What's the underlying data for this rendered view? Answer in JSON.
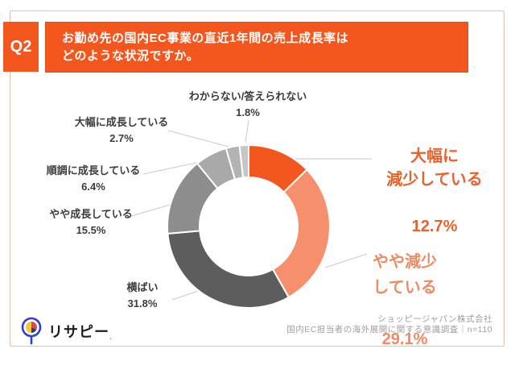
{
  "header": {
    "badge": "Q2",
    "question": "お勤め先の国内EC事業の直近1年間の売上成長率は\nどのような状況ですか。"
  },
  "chart_data": {
    "type": "pie",
    "variant": "donut",
    "title": "お勤め先の国内EC事業の直近1年間の売上成長率はどのような状況ですか。",
    "unit": "%",
    "start_angle_deg": 0,
    "direction": "clockwise",
    "legend_position": "none",
    "segments": [
      {
        "label": "大幅に減少している",
        "value": 12.7,
        "display": "12.7%",
        "color": "#f4571d"
      },
      {
        "label": "やや減少している",
        "value": 29.1,
        "display": "29.1%",
        "color": "#f6906c"
      },
      {
        "label": "横ばい",
        "value": 31.8,
        "display": "31.8%",
        "color": "#5d5d5d"
      },
      {
        "label": "やや成長している",
        "value": 15.5,
        "display": "15.5%",
        "color": "#8d8d8d"
      },
      {
        "label": "順調に成長している",
        "value": 6.4,
        "display": "6.4%",
        "color": "#a9a9a9"
      },
      {
        "label": "大幅に成長している",
        "value": 2.7,
        "display": "2.7%",
        "color": "#b3b3b3"
      },
      {
        "label": "わからない/答えられない",
        "value": 1.8,
        "display": "1.8%",
        "color": "#c6c6c6"
      }
    ],
    "callouts": [
      {
        "segment_index": 0,
        "name_lines": "大幅に\n減少している",
        "color": "#e8622b"
      },
      {
        "segment_index": 1,
        "name_lines": "やや減少\nしている",
        "color": "#ef8a61"
      }
    ]
  },
  "footer": {
    "brand": "リサピー",
    "brand_mark": ".",
    "source_line1": "ショッピージャパン株式会社",
    "source_line2": "国内EC担当者の海外展開に関する意識調査｜n=110"
  }
}
